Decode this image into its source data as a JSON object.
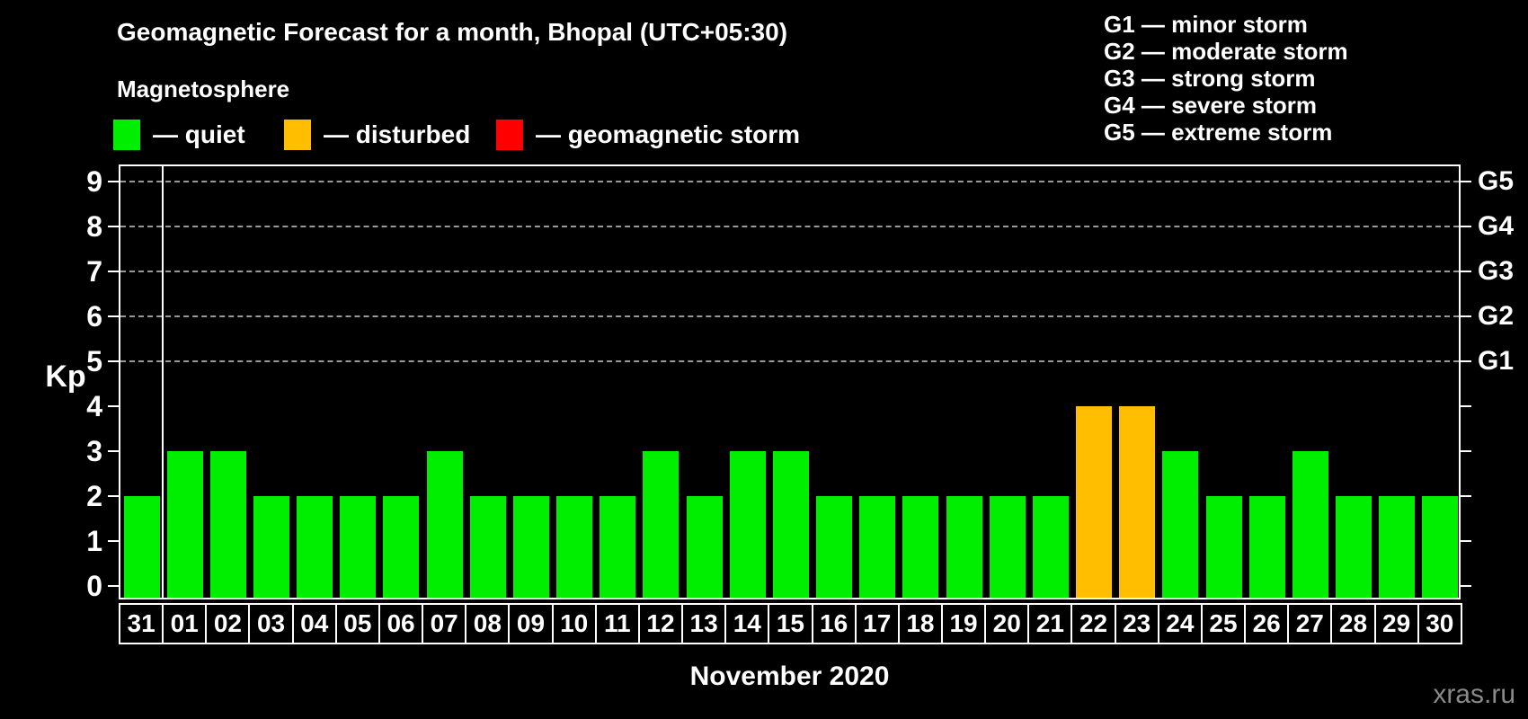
{
  "header": {
    "title": "Geomagnetic Forecast for a month, Bhopal (UTC+05:30)",
    "subtitle": "Magnetosphere"
  },
  "legend": {
    "items": [
      {
        "key": "quiet",
        "label": "— quiet",
        "color": "#00ee00"
      },
      {
        "key": "disturbed",
        "label": "— disturbed",
        "color": "#ffbf00"
      },
      {
        "key": "storm",
        "label": "— geomagnetic storm",
        "color": "#ff0000"
      }
    ]
  },
  "g_legend": [
    "G1 — minor storm",
    "G2 — moderate storm",
    "G3 — strong storm",
    "G4 — severe storm",
    "G5 — extreme storm"
  ],
  "chart_data": {
    "type": "bar",
    "title": "Geomagnetic Forecast for a month, Bhopal (UTC+05:30)",
    "ylabel": "Kp",
    "xlabel": "November 2020",
    "ylim": [
      0,
      9
    ],
    "yticks": [
      0,
      1,
      2,
      3,
      4,
      5,
      6,
      7,
      8,
      9
    ],
    "gridlines_kp": [
      5,
      6,
      7,
      8,
      9
    ],
    "grid": "dashed horizontal at G-storm levels only",
    "legend_position": "top",
    "categories": [
      "31",
      "01",
      "02",
      "03",
      "04",
      "05",
      "06",
      "07",
      "08",
      "09",
      "10",
      "11",
      "12",
      "13",
      "14",
      "15",
      "16",
      "17",
      "18",
      "19",
      "20",
      "21",
      "22",
      "23",
      "24",
      "25",
      "26",
      "27",
      "28",
      "29",
      "30"
    ],
    "values": [
      2,
      3,
      3,
      2,
      2,
      2,
      2,
      3,
      2,
      2,
      2,
      2,
      3,
      2,
      3,
      3,
      2,
      2,
      2,
      2,
      2,
      2,
      4,
      4,
      3,
      2,
      2,
      3,
      2,
      2,
      2
    ],
    "statuses": [
      "quiet",
      "quiet",
      "quiet",
      "quiet",
      "quiet",
      "quiet",
      "quiet",
      "quiet",
      "quiet",
      "quiet",
      "quiet",
      "quiet",
      "quiet",
      "quiet",
      "quiet",
      "quiet",
      "quiet",
      "quiet",
      "quiet",
      "quiet",
      "quiet",
      "quiet",
      "disturbed",
      "disturbed",
      "quiet",
      "quiet",
      "quiet",
      "quiet",
      "quiet",
      "quiet",
      "quiet"
    ],
    "colors": {
      "quiet": "#00ee00",
      "disturbed": "#ffbf00",
      "storm": "#ff0000"
    },
    "right_axis": [
      {
        "label": "G1",
        "kp": 5
      },
      {
        "label": "G2",
        "kp": 6
      },
      {
        "label": "G3",
        "kp": 7
      },
      {
        "label": "G4",
        "kp": 8
      },
      {
        "label": "G5",
        "kp": 9
      }
    ],
    "month_separator_after_index": 0
  },
  "footer": {
    "xaxis_title": "November 2020",
    "watermark": "xras.ru"
  }
}
